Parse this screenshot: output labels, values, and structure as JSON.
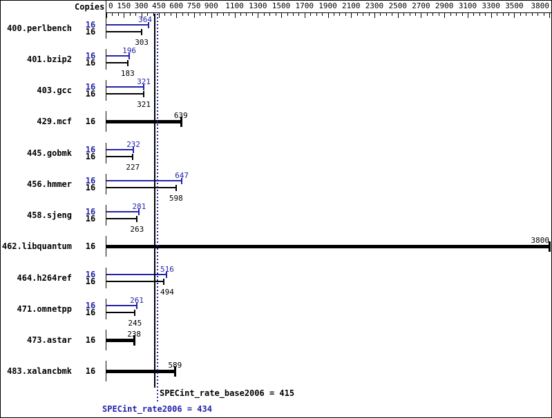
{
  "header": {
    "copies_label": "Copies"
  },
  "chart_data": {
    "type": "bar",
    "orientation": "horizontal",
    "title": "",
    "xlabel": "",
    "ylabel": "",
    "xlim": [
      0,
      3800
    ],
    "minor_tick_step": 50,
    "labeled_ticks": [
      0,
      150,
      300,
      450,
      600,
      750,
      900,
      1100,
      1300,
      1500,
      1700,
      1900,
      2100,
      2300,
      2500,
      2700,
      2900,
      3100,
      3300,
      3500,
      3800
    ],
    "series_legend": {
      "peak": "SPECint_rate2006 (blue)",
      "base": "SPECint_rate_base2006 (black)"
    },
    "benchmarks": [
      {
        "name": "400.perlbench",
        "copies": 16,
        "peak": 364,
        "base": 303,
        "single": false
      },
      {
        "name": "401.bzip2",
        "copies": 16,
        "peak": 196,
        "base": 183,
        "single": false
      },
      {
        "name": "403.gcc",
        "copies": 16,
        "peak": 321,
        "base": 321,
        "single": false
      },
      {
        "name": "429.mcf",
        "copies": 16,
        "base": 639,
        "single": true
      },
      {
        "name": "445.gobmk",
        "copies": 16,
        "peak": 232,
        "base": 227,
        "single": false
      },
      {
        "name": "456.hmmer",
        "copies": 16,
        "peak": 647,
        "base": 598,
        "single": false
      },
      {
        "name": "458.sjeng",
        "copies": 16,
        "peak": 281,
        "base": 263,
        "single": false
      },
      {
        "name": "462.libquantum",
        "copies": 16,
        "base": 3800,
        "single": true
      },
      {
        "name": "464.h264ref",
        "copies": 16,
        "peak": 516,
        "base": 494,
        "single": false
      },
      {
        "name": "471.omnetpp",
        "copies": 16,
        "peak": 261,
        "base": 245,
        "single": false
      },
      {
        "name": "473.astar",
        "copies": 16,
        "base": 238,
        "single": true
      },
      {
        "name": "483.xalancbmk",
        "copies": 16,
        "base": 589,
        "single": true
      }
    ],
    "summary": {
      "base_value": 415,
      "peak_value": 434,
      "base_label": "SPECint_rate_base2006 = 415",
      "peak_label": "SPECint_rate2006 = 434"
    },
    "colors": {
      "peak": "#2222aa",
      "base": "#000000"
    }
  }
}
